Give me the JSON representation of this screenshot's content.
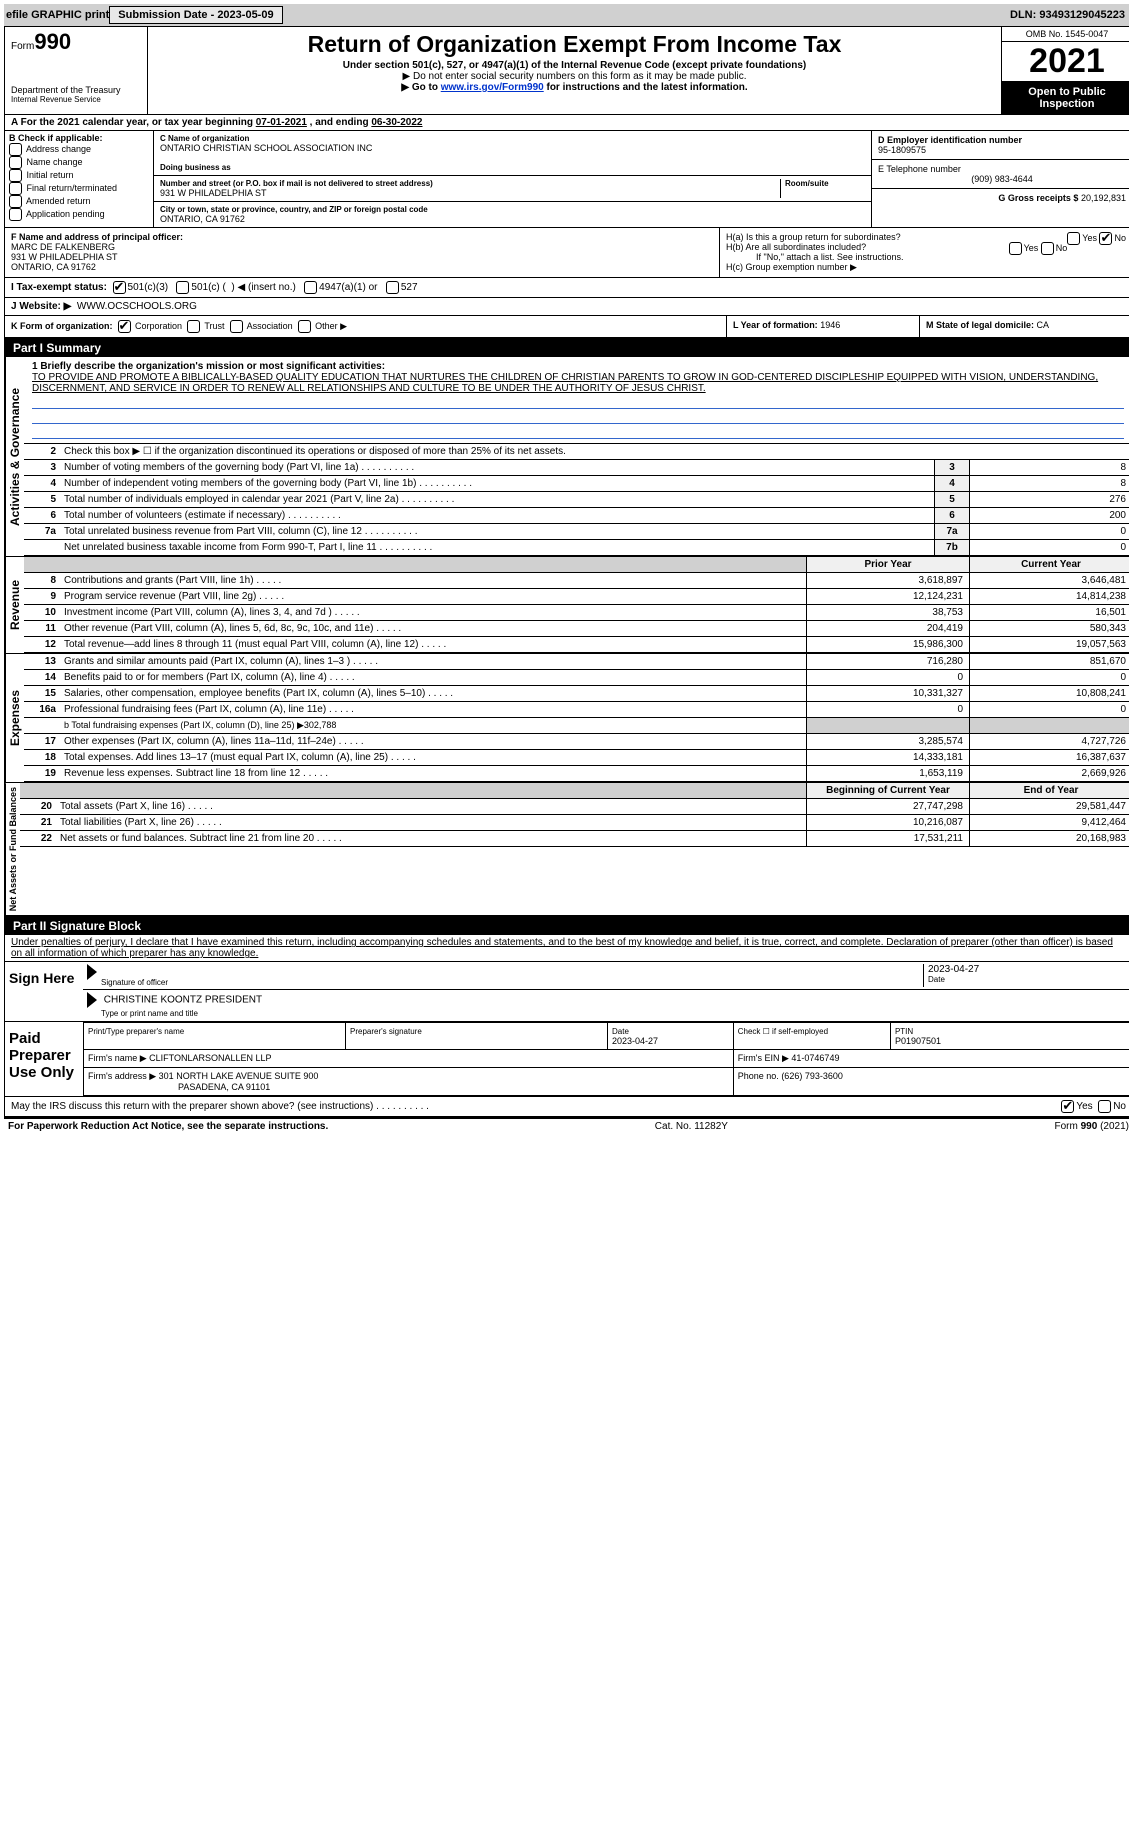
{
  "top": {
    "efile": "efile GRAPHIC print",
    "submission_label": "Submission Date - 2023-05-09",
    "dln": "DLN: 93493129045223"
  },
  "header": {
    "form_prefix": "Form",
    "form_number": "990",
    "department": "Department of the Treasury",
    "irs": "Internal Revenue Service",
    "title": "Return of Organization Exempt From Income Tax",
    "subtitle": "Under section 501(c), 527, or 4947(a)(1) of the Internal Revenue Code (except private foundations)",
    "note1": "▶ Do not enter social security numbers on this form as it may be made public.",
    "note2_pre": "▶ Go to ",
    "note2_link": "www.irs.gov/Form990",
    "note2_post": " for instructions and the latest information.",
    "omb": "OMB No. 1545-0047",
    "tax_year": "2021",
    "open": "Open to Public Inspection"
  },
  "a": {
    "text_pre": "For the 2021 calendar year, or tax year beginning ",
    "begin": "07-01-2021",
    "mid": " , and ending ",
    "end": "06-30-2022"
  },
  "b": {
    "label": "B Check if applicable:",
    "opts": [
      "Address change",
      "Name change",
      "Initial return",
      "Final return/terminated",
      "Amended return",
      "Application pending"
    ]
  },
  "c": {
    "name_label": "C Name of organization",
    "name": "ONTARIO CHRISTIAN SCHOOL ASSOCIATION INC",
    "dba_label": "Doing business as",
    "dba": "",
    "street_label": "Number and street (or P.O. box if mail is not delivered to street address)",
    "room_label": "Room/suite",
    "street": "931 W PHILADELPHIA ST",
    "city_label": "City or town, state or province, country, and ZIP or foreign postal code",
    "city": "ONTARIO, CA  91762"
  },
  "d": {
    "label": "D Employer identification number",
    "value": "95-1809575"
  },
  "e": {
    "label": "E Telephone number",
    "value": "(909) 983-4644"
  },
  "g": {
    "label": "G Gross receipts $",
    "value": "20,192,831"
  },
  "f": {
    "label": "F Name and address of principal officer:",
    "name": "MARC DE FALKENBERG",
    "street": "931 W PHILADELPHIA ST",
    "city": "ONTARIO, CA  91762"
  },
  "h": {
    "ha_label": "H(a)  Is this a group return for subordinates?",
    "ha_no": true,
    "hb_label": "H(b)  Are all subordinates included?",
    "hb_note": "If \"No,\" attach a list. See instructions.",
    "hc_label": "H(c)  Group exemption number ▶"
  },
  "i": {
    "label": "I  Tax-exempt status:",
    "c501c3": true,
    "opts_text": "501(c)(3)    501(c) (  ) ◀ (insert no.)    4947(a)(1) or    527"
  },
  "j": {
    "label": "J  Website: ▶",
    "value": "WWW.OCSCHOOLS.ORG"
  },
  "k": {
    "label": "K Form of organization:",
    "corp": true,
    "opts": "Corporation    Trust    Association    Other ▶"
  },
  "l": {
    "label": "L Year of formation:",
    "value": "1946"
  },
  "m": {
    "label": "M State of legal domicile:",
    "value": "CA"
  },
  "part1": {
    "title": "Part I    Summary",
    "mission_label": "1  Briefly describe the organization's mission or most significant activities:",
    "mission": "TO PROVIDE AND PROMOTE A BIBLICALLY-BASED QUALITY EDUCATION THAT NURTURES THE CHILDREN OF CHRISTIAN PARENTS TO GROW IN GOD-CENTERED DISCIPLESHIP EQUIPPED WITH VISION, UNDERSTANDING, DISCERNMENT, AND SERVICE IN ORDER TO RENEW ALL RELATIONSHIPS AND CULTURE TO BE UNDER THE AUTHORITY OF JESUS CHRIST.",
    "line2": "Check this box ▶ ☐ if the organization discontinued its operations or disposed of more than 25% of its net assets.",
    "side_activities": "Activities & Governance",
    "side_revenue": "Revenue",
    "side_expenses": "Expenses",
    "side_netassets": "Net Assets or Fund Balances",
    "lines_gov": [
      {
        "n": "3",
        "d": "Number of voting members of the governing body (Part VI, line 1a)",
        "lbl": "3",
        "v": "8"
      },
      {
        "n": "4",
        "d": "Number of independent voting members of the governing body (Part VI, line 1b)",
        "lbl": "4",
        "v": "8"
      },
      {
        "n": "5",
        "d": "Total number of individuals employed in calendar year 2021 (Part V, line 2a)",
        "lbl": "5",
        "v": "276"
      },
      {
        "n": "6",
        "d": "Total number of volunteers (estimate if necessary)",
        "lbl": "6",
        "v": "200"
      },
      {
        "n": "7a",
        "d": "Total unrelated business revenue from Part VIII, column (C), line 12",
        "lbl": "7a",
        "v": "0"
      },
      {
        "n": "",
        "d": "Net unrelated business taxable income from Form 990-T, Part I, line 11",
        "lbl": "7b",
        "v": "0"
      }
    ],
    "header_prior": "Prior Year",
    "header_current": "Current Year",
    "lines_rev": [
      {
        "n": "8",
        "d": "Contributions and grants (Part VIII, line 1h)",
        "p": "3,618,897",
        "c": "3,646,481"
      },
      {
        "n": "9",
        "d": "Program service revenue (Part VIII, line 2g)",
        "p": "12,124,231",
        "c": "14,814,238"
      },
      {
        "n": "10",
        "d": "Investment income (Part VIII, column (A), lines 3, 4, and 7d )",
        "p": "38,753",
        "c": "16,501"
      },
      {
        "n": "11",
        "d": "Other revenue (Part VIII, column (A), lines 5, 6d, 8c, 9c, 10c, and 11e)",
        "p": "204,419",
        "c": "580,343"
      },
      {
        "n": "12",
        "d": "Total revenue—add lines 8 through 11 (must equal Part VIII, column (A), line 12)",
        "p": "15,986,300",
        "c": "19,057,563"
      }
    ],
    "lines_exp": [
      {
        "n": "13",
        "d": "Grants and similar amounts paid (Part IX, column (A), lines 1–3 )",
        "p": "716,280",
        "c": "851,670"
      },
      {
        "n": "14",
        "d": "Benefits paid to or for members (Part IX, column (A), line 4)",
        "p": "0",
        "c": "0"
      },
      {
        "n": "15",
        "d": "Salaries, other compensation, employee benefits (Part IX, column (A), lines 5–10)",
        "p": "10,331,327",
        "c": "10,808,241"
      },
      {
        "n": "16a",
        "d": "Professional fundraising fees (Part IX, column (A), line 11e)",
        "p": "0",
        "c": "0"
      }
    ],
    "line16b": "b  Total fundraising expenses (Part IX, column (D), line 25) ▶302,788",
    "lines_exp2": [
      {
        "n": "17",
        "d": "Other expenses (Part IX, column (A), lines 11a–11d, 11f–24e)",
        "p": "3,285,574",
        "c": "4,727,726"
      },
      {
        "n": "18",
        "d": "Total expenses. Add lines 13–17 (must equal Part IX, column (A), line 25)",
        "p": "14,333,181",
        "c": "16,387,637"
      },
      {
        "n": "19",
        "d": "Revenue less expenses. Subtract line 18 from line 12",
        "p": "1,653,119",
        "c": "2,669,926"
      }
    ],
    "header_beg": "Beginning of Current Year",
    "header_end": "End of Year",
    "lines_net": [
      {
        "n": "20",
        "d": "Total assets (Part X, line 16)",
        "p": "27,747,298",
        "c": "29,581,447"
      },
      {
        "n": "21",
        "d": "Total liabilities (Part X, line 26)",
        "p": "10,216,087",
        "c": "9,412,464"
      },
      {
        "n": "22",
        "d": "Net assets or fund balances. Subtract line 21 from line 20",
        "p": "17,531,211",
        "c": "20,168,983"
      }
    ]
  },
  "part2": {
    "title": "Part II    Signature Block",
    "jurat": "Under penalties of perjury, I declare that I have examined this return, including accompanying schedules and statements, and to the best of my knowledge and belief, it is true, correct, and complete. Declaration of preparer (other than officer) is based on all information of which preparer has any knowledge.",
    "sign_here": "Sign Here",
    "sig_officer_label": "Signature of officer",
    "sig_date": "2023-04-27",
    "sig_date_label": "Date",
    "name_title": "CHRISTINE KOONTZ  PRESIDENT",
    "name_title_label": "Type or print name and title",
    "paid": "Paid Preparer Use Only",
    "pt_name_label": "Print/Type preparer's name",
    "pt_name": "",
    "pt_sig_label": "Preparer's signature",
    "pt_date_label": "Date",
    "pt_date": "2023-04-27",
    "pt_self": "Check ☐ if self-employed",
    "ptin_label": "PTIN",
    "ptin": "P01907501",
    "firm_name_label": "Firm's name    ▶",
    "firm_name": "CLIFTONLARSONALLEN LLP",
    "firm_ein_label": "Firm's EIN ▶",
    "firm_ein": "41-0746749",
    "firm_addr_label": "Firm's address ▶",
    "firm_addr1": "301 NORTH LAKE AVENUE SUITE 900",
    "firm_addr2": "PASADENA, CA  91101",
    "phone_label": "Phone no.",
    "phone": "(626) 793-3600",
    "discuss": "May the IRS discuss this return with the preparer shown above? (see instructions)",
    "discuss_yes": true
  },
  "footer": {
    "left": "For Paperwork Reduction Act Notice, see the separate instructions.",
    "mid": "Cat. No. 11282Y",
    "right": "Form 990 (2021)"
  }
}
